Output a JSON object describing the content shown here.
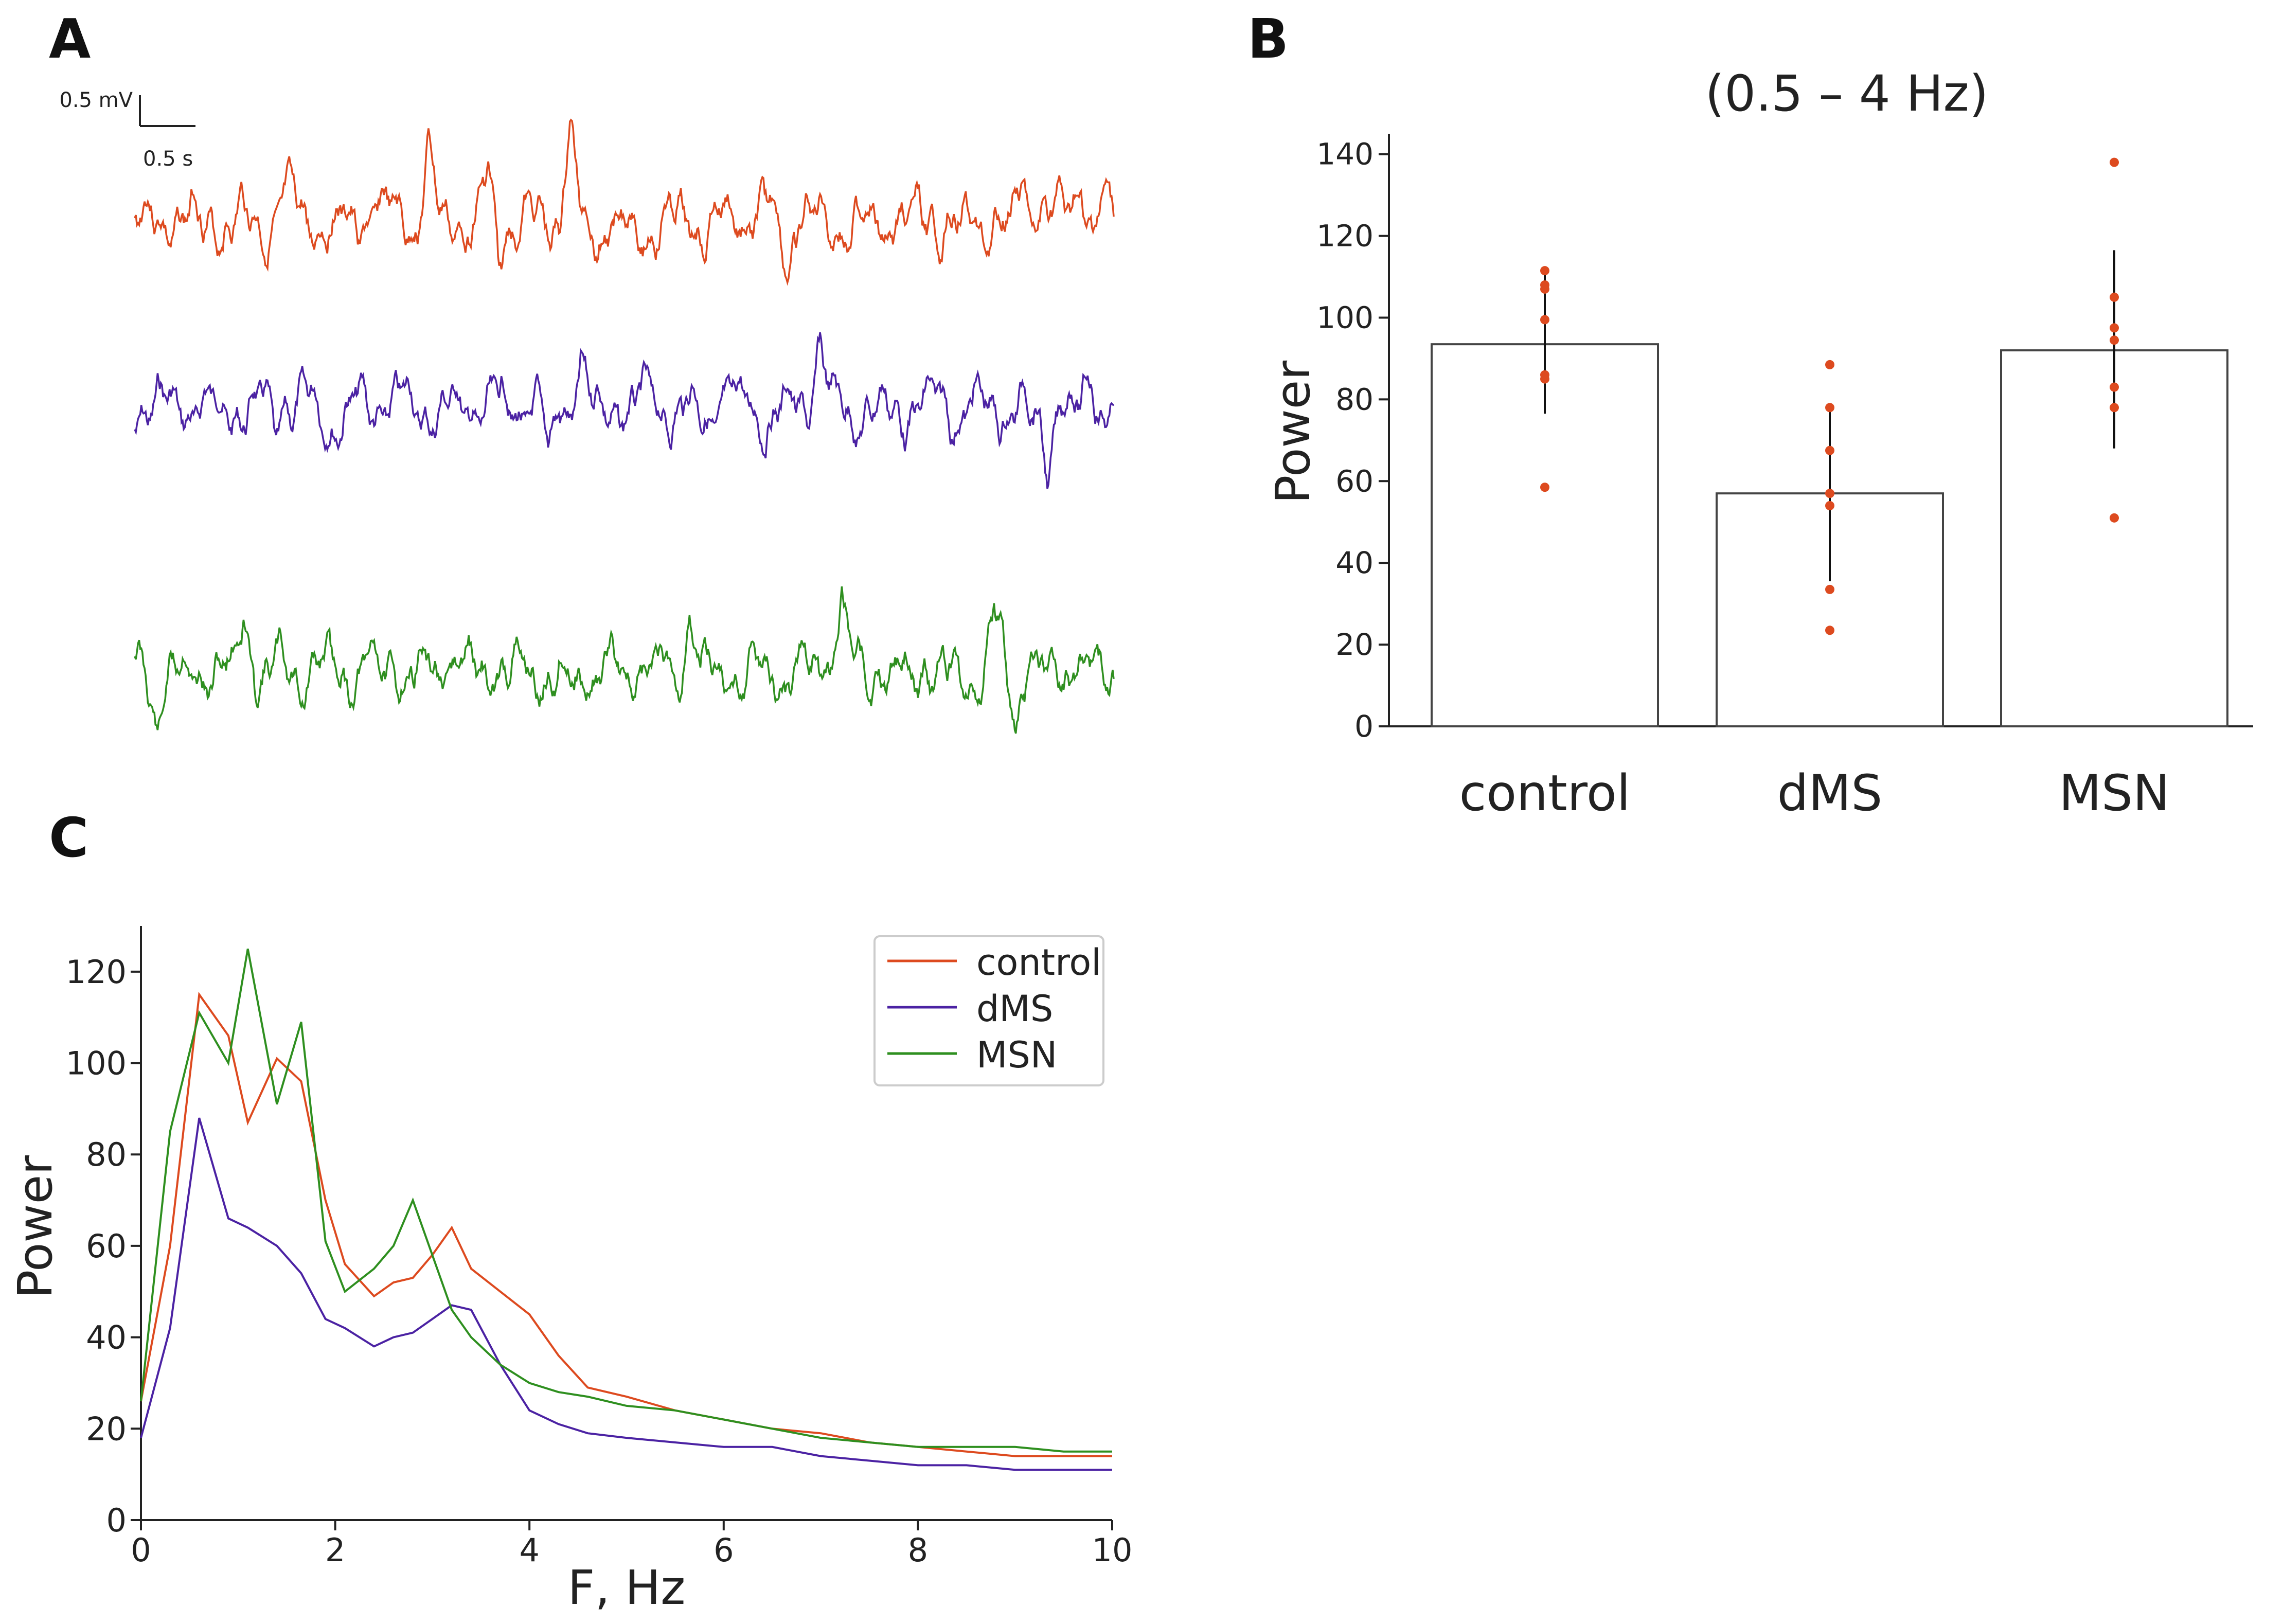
{
  "panels": {
    "a": "A",
    "b": "B",
    "c": "C"
  },
  "scalebar": {
    "voltage_label": "0.5 mV",
    "time_label": "0.5 s"
  },
  "colors": {
    "control": "#dd4a1f",
    "dMS": "#4b22a3",
    "MSN": "#2e8f1f",
    "bar_edge": "#444444",
    "axis": "#222222"
  },
  "chart_data": [
    {
      "id": "traces",
      "type": "line",
      "title": "",
      "series": [
        {
          "name": "control",
          "trace": "orange"
        },
        {
          "name": "dMS",
          "trace": "purple"
        },
        {
          "name": "MSN",
          "trace": "green"
        }
      ]
    },
    {
      "id": "bar",
      "type": "bar",
      "title": "(0.5 – 4 Hz)",
      "ylabel": "Power",
      "xlabel": "",
      "ylim": [
        0,
        145
      ],
      "yticks": [
        "0",
        "20",
        "40",
        "60",
        "80",
        "100",
        "120",
        "140"
      ],
      "categories": [
        "control",
        "dMS",
        "MSN"
      ],
      "values": [
        93.5,
        57.0,
        92.0
      ],
      "err_low": [
        76.5,
        35.5,
        68.0
      ],
      "err_high": [
        111.0,
        77.5,
        116.5
      ],
      "points": [
        [
          111.5,
          108.0,
          107.0,
          99.5,
          86.0,
          85.0,
          58.5
        ],
        [
          88.5,
          78.0,
          67.5,
          57.0,
          54.0,
          33.5,
          23.5
        ],
        [
          138.0,
          105.0,
          97.5,
          94.5,
          83.0,
          78.0,
          51.0
        ]
      ]
    },
    {
      "id": "spectrum",
      "type": "line",
      "title": "",
      "xlabel": "F, Hz",
      "ylabel": "Power",
      "xlim": [
        0,
        10
      ],
      "ylim": [
        0,
        130
      ],
      "xticks": [
        "0",
        "2",
        "4",
        "6",
        "8",
        "10"
      ],
      "yticks": [
        "0",
        "20",
        "40",
        "60",
        "80",
        "100",
        "120"
      ],
      "legend": [
        "control",
        "dMS",
        "MSN"
      ],
      "x": [
        0,
        0.3,
        0.6,
        0.9,
        1.1,
        1.4,
        1.65,
        1.9,
        2.1,
        2.4,
        2.6,
        2.8,
        3.0,
        3.2,
        3.4,
        3.7,
        4.0,
        4.3,
        4.6,
        5.0,
        5.5,
        6.0,
        6.5,
        7.0,
        7.5,
        8.0,
        8.5,
        9.0,
        9.5,
        10
      ],
      "series": [
        {
          "name": "control",
          "values": [
            26,
            60,
            115,
            106,
            87,
            101,
            96,
            70,
            56,
            49,
            52,
            53,
            58,
            64,
            55,
            50,
            45,
            36,
            29,
            27,
            24,
            22,
            20,
            19,
            17,
            16,
            15,
            14,
            14,
            14
          ]
        },
        {
          "name": "dMS",
          "values": [
            18,
            42,
            88,
            66,
            64,
            60,
            54,
            44,
            42,
            38,
            40,
            41,
            44,
            47,
            46,
            34,
            24,
            21,
            19,
            18,
            17,
            16,
            16,
            14,
            13,
            12,
            12,
            11,
            11,
            11
          ]
        },
        {
          "name": "MSN",
          "values": [
            26,
            85,
            111,
            100,
            125,
            91,
            109,
            61,
            50,
            55,
            60,
            70,
            58,
            46,
            40,
            34,
            30,
            28,
            27,
            25,
            24,
            22,
            20,
            18,
            17,
            16,
            16,
            16,
            15,
            15
          ]
        }
      ]
    }
  ]
}
